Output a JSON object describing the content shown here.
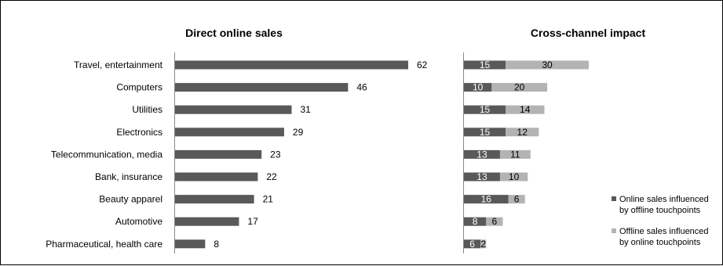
{
  "chart_data": [
    {
      "type": "bar",
      "orientation": "horizontal",
      "title": "Direct online sales",
      "categories": [
        "Travel, entertainment",
        "Computers",
        "Utilities",
        "Electronics",
        "Telecommunication, media",
        "Bank, insurance",
        "Beauty apparel",
        "Automotive",
        "Pharmaceutical, health care"
      ],
      "values": [
        62,
        46,
        31,
        29,
        23,
        22,
        21,
        17,
        8
      ],
      "colors": [
        "#595959"
      ],
      "data_labels": true,
      "grid": false
    },
    {
      "type": "bar",
      "orientation": "horizontal",
      "stacked": true,
      "title": "Cross-channel impact",
      "categories": [
        "Travel, entertainment",
        "Computers",
        "Utilities",
        "Electronics",
        "Telecommunication, media",
        "Bank, insurance",
        "Beauty apparel",
        "Automotive",
        "Pharmaceutical, health care"
      ],
      "series": [
        {
          "name": "Online sales influenced by offline touchpoints",
          "values": [
            15,
            10,
            15,
            15,
            13,
            13,
            16,
            8,
            6
          ],
          "color": "#595959"
        },
        {
          "name": "Offline sales influenced by online touchpoints",
          "values": [
            30,
            20,
            14,
            12,
            11,
            10,
            6,
            6,
            2
          ],
          "color": "#b3b3b3"
        }
      ],
      "legend": {
        "position": "right",
        "lines": [
          [
            "Online sales influenced",
            "by offline touchpoints"
          ],
          [
            "Offline sales influenced",
            "by online touchpoints"
          ]
        ]
      },
      "data_labels": true,
      "grid": false
    }
  ]
}
